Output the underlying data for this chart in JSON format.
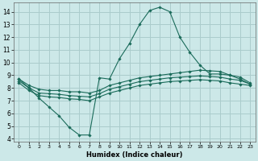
{
  "xlabel": "Humidex (Indice chaleur)",
  "background_color": "#cce8e8",
  "grid_color": "#aacccc",
  "line_color": "#1a6b5a",
  "x_ticks": [
    0,
    1,
    2,
    3,
    4,
    5,
    6,
    7,
    8,
    9,
    10,
    11,
    12,
    13,
    14,
    15,
    16,
    17,
    18,
    19,
    20,
    21,
    22,
    23
  ],
  "y_ticks": [
    4,
    5,
    6,
    7,
    8,
    9,
    10,
    11,
    12,
    13,
    14
  ],
  "ylim": [
    3.8,
    14.7
  ],
  "xlim": [
    -0.5,
    23.5
  ],
  "lines": [
    {
      "x": [
        0,
        1,
        2,
        3,
        4,
        5,
        6,
        7,
        8,
        9,
        10,
        11,
        12,
        13,
        14,
        15,
        16,
        17,
        18,
        19,
        20,
        21,
        22,
        23
      ],
      "y": [
        8.7,
        8.0,
        7.2,
        6.5,
        5.8,
        4.9,
        4.3,
        4.3,
        8.8,
        8.7,
        10.3,
        11.5,
        13.0,
        14.1,
        14.35,
        14.0,
        12.0,
        10.8,
        9.8,
        9.1,
        9.1,
        9.0,
        8.7,
        8.3
      ]
    },
    {
      "x": [
        0,
        1,
        2,
        3,
        4,
        5,
        6,
        7,
        8,
        9,
        10,
        11,
        12,
        13,
        14,
        15,
        16,
        17,
        18,
        19,
        20,
        21,
        22,
        23
      ],
      "y": [
        8.7,
        8.2,
        7.9,
        7.8,
        7.8,
        7.7,
        7.7,
        7.6,
        7.8,
        8.2,
        8.4,
        8.6,
        8.8,
        8.9,
        9.0,
        9.1,
        9.2,
        9.3,
        9.4,
        9.35,
        9.3,
        9.0,
        8.85,
        8.4
      ]
    },
    {
      "x": [
        0,
        1,
        2,
        3,
        4,
        5,
        6,
        7,
        8,
        9,
        10,
        11,
        12,
        13,
        14,
        15,
        16,
        17,
        18,
        19,
        20,
        21,
        22,
        23
      ],
      "y": [
        8.55,
        8.0,
        7.6,
        7.55,
        7.5,
        7.4,
        7.35,
        7.3,
        7.55,
        7.9,
        8.1,
        8.3,
        8.5,
        8.6,
        8.7,
        8.8,
        8.85,
        8.9,
        8.95,
        8.9,
        8.85,
        8.7,
        8.6,
        8.3
      ]
    },
    {
      "x": [
        0,
        1,
        2,
        3,
        4,
        5,
        6,
        7,
        8,
        9,
        10,
        11,
        12,
        13,
        14,
        15,
        16,
        17,
        18,
        19,
        20,
        21,
        22,
        23
      ],
      "y": [
        8.4,
        7.8,
        7.4,
        7.3,
        7.25,
        7.15,
        7.1,
        7.0,
        7.3,
        7.6,
        7.8,
        8.0,
        8.2,
        8.3,
        8.4,
        8.5,
        8.55,
        8.6,
        8.65,
        8.6,
        8.55,
        8.4,
        8.3,
        8.2
      ]
    }
  ]
}
